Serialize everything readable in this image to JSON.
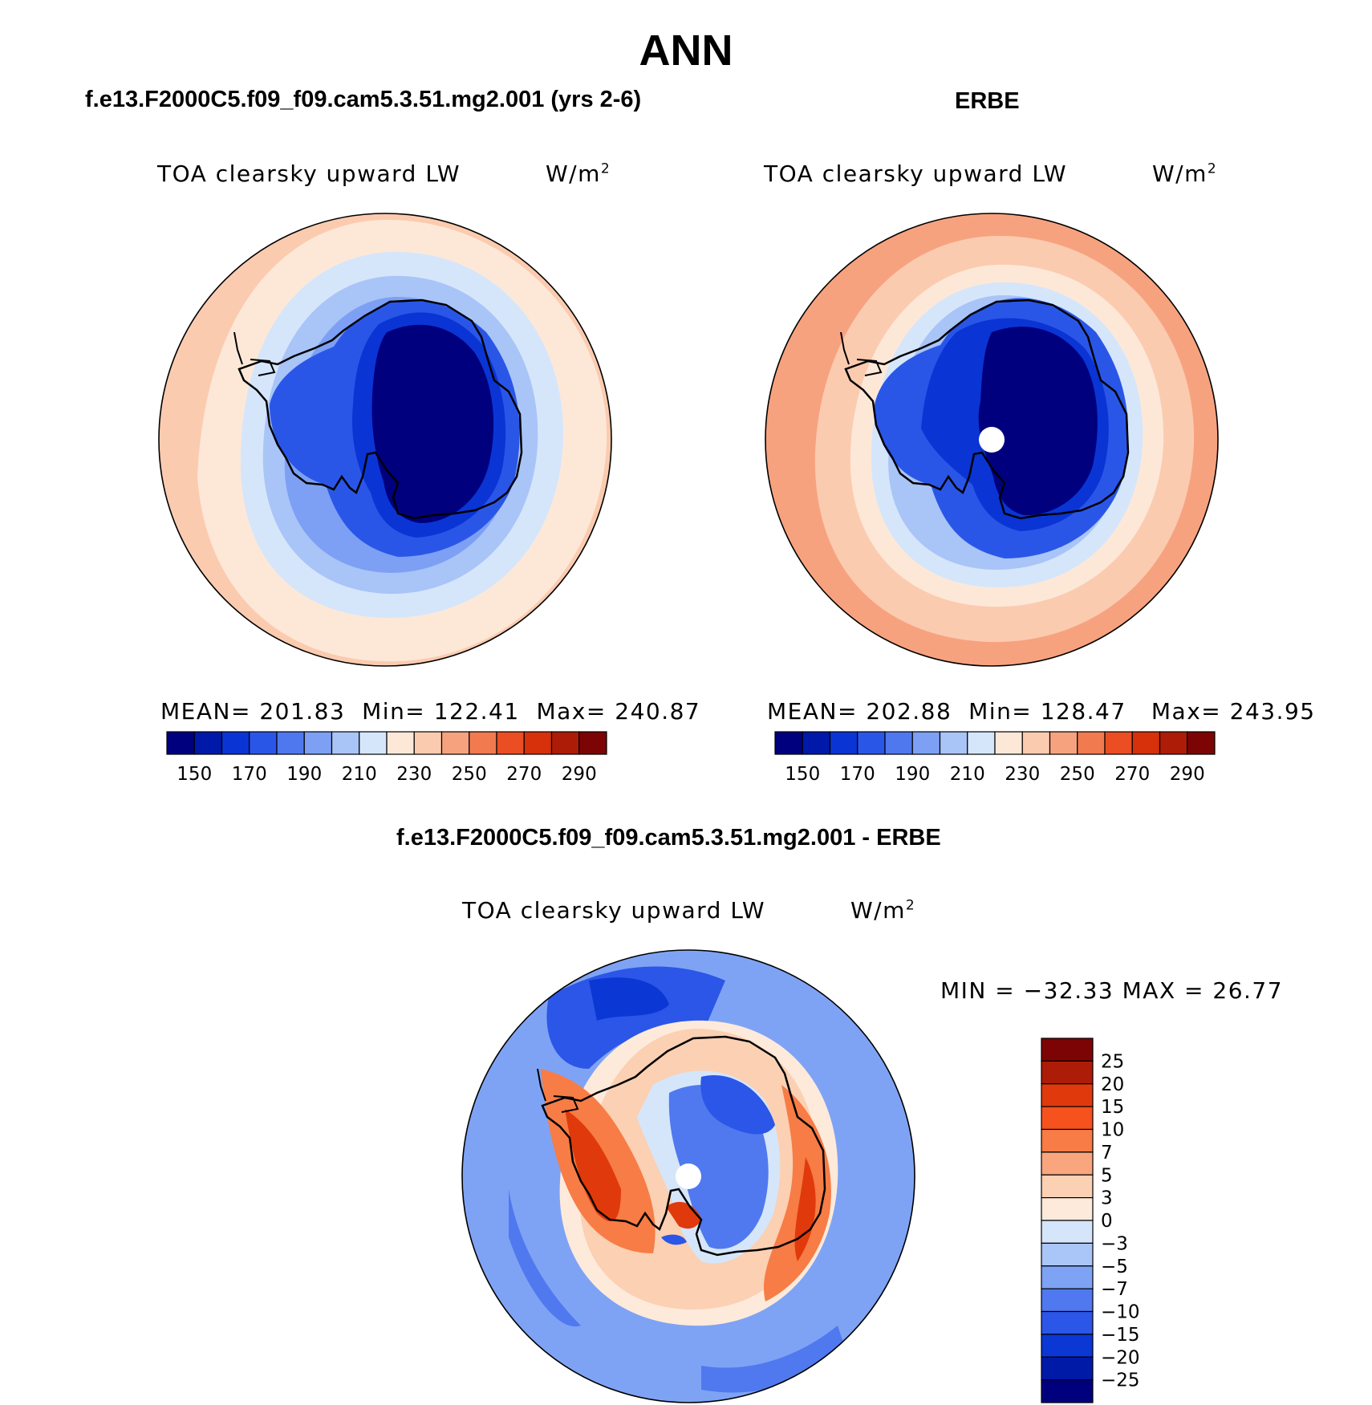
{
  "figure": {
    "title": "ANN"
  },
  "panels": {
    "model": {
      "title": "f.e13.F2000C5.f09_f09.cam5.3.51.mg2.001 (yrs 2-6)",
      "variable": "TOA clearsky upward LW",
      "units": "W/m",
      "units_sup": "2",
      "mean_label": "MEAN=",
      "mean": "201.83",
      "min_label": "Min=",
      "min": "122.41",
      "max_label": "Max=",
      "max": "240.87"
    },
    "obs": {
      "title": "ERBE",
      "variable": "TOA clearsky upward LW",
      "units": "W/m",
      "units_sup": "2",
      "mean_label": "MEAN=",
      "mean": "202.88",
      "min_label": "Min=",
      "min": "128.47",
      "max_label": "Max=",
      "max": "243.95"
    },
    "diff": {
      "title": "f.e13.F2000C5.f09_f09.cam5.3.51.mg2.001 - ERBE",
      "variable": "TOA clearsky upward LW",
      "units": "W/m",
      "units_sup": "2",
      "stats": "MIN = −32.33 MAX =  26.77"
    }
  },
  "colorbars": {
    "absolute": {
      "colors": [
        "#00007f",
        "#0019a8",
        "#0a35d4",
        "#2a56e8",
        "#4f78ef",
        "#7da0f4",
        "#a9c4f7",
        "#d5e6fb",
        "#fde8d8",
        "#fbcbb0",
        "#f7a27f",
        "#f27a4f",
        "#ea4e22",
        "#d6310a",
        "#ac1c06",
        "#7d0404"
      ],
      "tick_labels": [
        "150",
        "170",
        "190",
        "210",
        "230",
        "250",
        "270",
        "290"
      ]
    },
    "difference": {
      "colors": [
        "#7d0404",
        "#ac1c06",
        "#e03a0c",
        "#f6521e",
        "#f77c45",
        "#f9a67f",
        "#fbd0b3",
        "#fdeadb",
        "#d5e6fb",
        "#aac5f7",
        "#7fa3f4",
        "#5079ef",
        "#2b56e7",
        "#0b37d4",
        "#001aa8",
        "#00007f"
      ],
      "tick_labels": [
        "25",
        "20",
        "15",
        "10",
        "7",
        "5",
        "3",
        "0",
        "−3",
        "−5",
        "−7",
        "−10",
        "−15",
        "−20",
        "−25"
      ]
    }
  }
}
